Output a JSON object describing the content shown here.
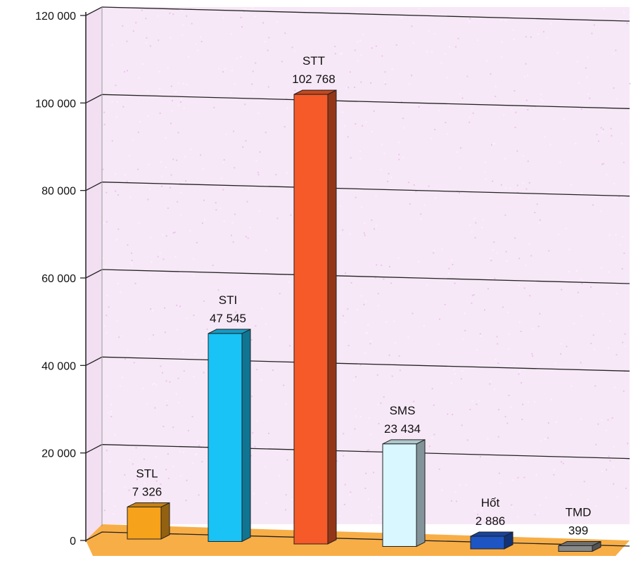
{
  "chart_data": {
    "type": "bar",
    "title": "",
    "xlabel": "",
    "ylabel": "",
    "ylim": [
      0,
      120000
    ],
    "yticks": [
      0,
      20000,
      40000,
      60000,
      80000,
      100000,
      120000
    ],
    "ytick_labels": [
      "0",
      "20 000",
      "40 000",
      "60 000",
      "80 000",
      "100 000",
      "120 000"
    ],
    "grid": true,
    "legend": "none",
    "categories": [
      "STL",
      "STI",
      "STT",
      "SMS",
      "Hốt",
      "TMD"
    ],
    "values": [
      7326,
      47545,
      102768,
      23434,
      2886,
      399
    ],
    "value_labels": [
      "7 326",
      "47 545",
      "102 768",
      "23 434",
      "2 886",
      "399"
    ],
    "colors": [
      "#f7a21b",
      "#19c3f5",
      "#f55a28",
      "#d9f7ff",
      "#1d55c4",
      "#8a8a8a"
    ],
    "background_color": "#f7e8f7",
    "floor_color": "#f7a533"
  }
}
